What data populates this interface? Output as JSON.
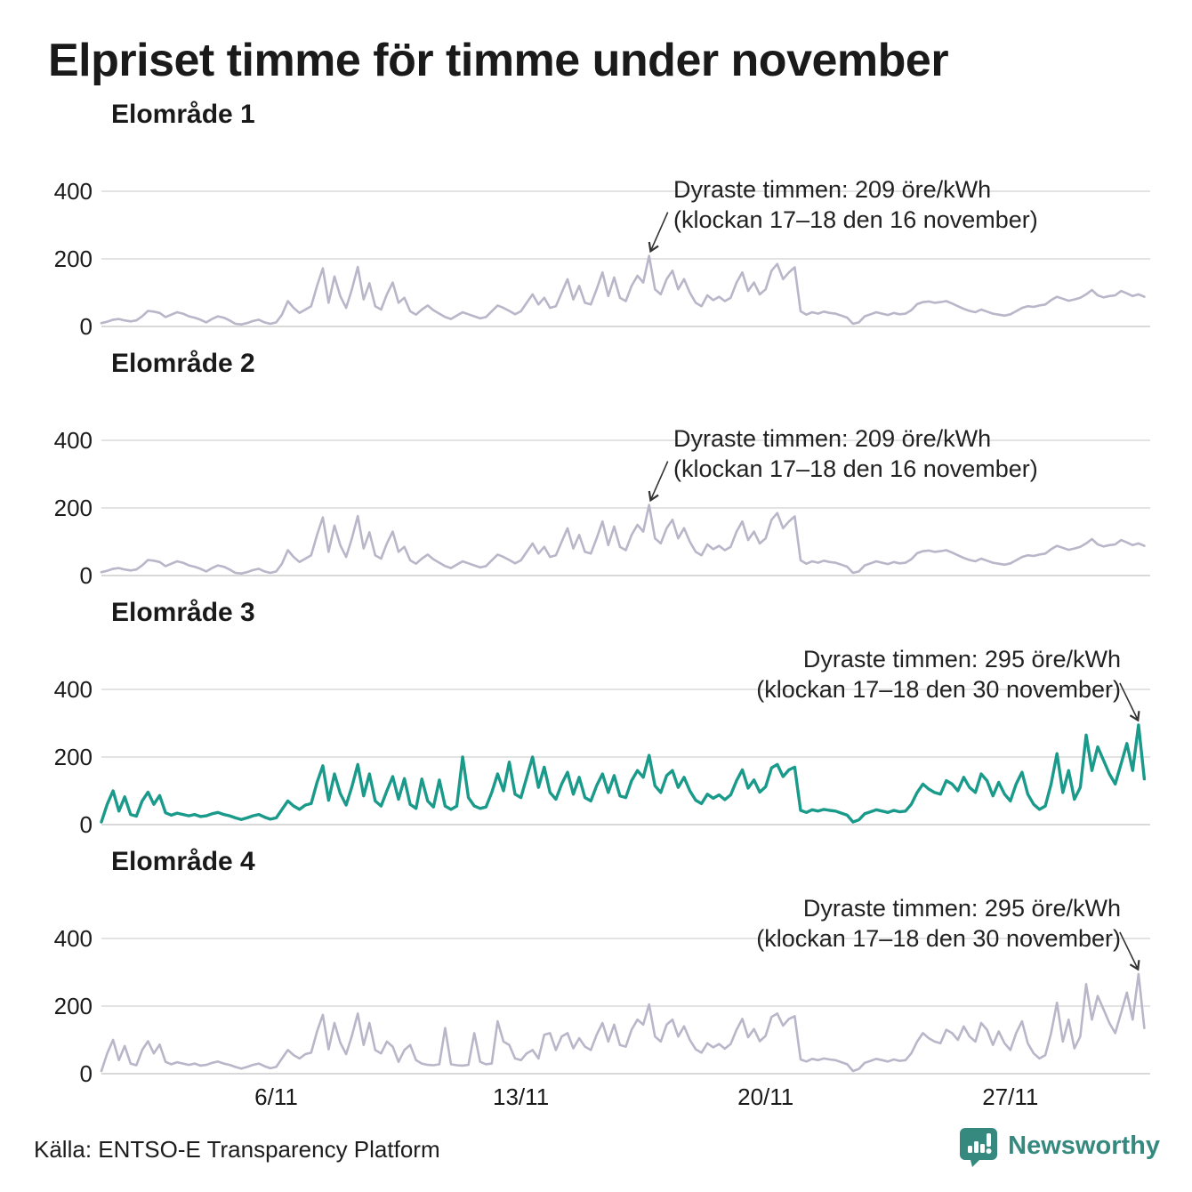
{
  "title": "Elpriset timme för timme under november",
  "source": "Källa: ENTSO-E Transparency Platform",
  "brand": {
    "name": "Newsworthy",
    "color": "#35897f"
  },
  "colors": {
    "text": "#1a1a1a",
    "grid": "#e3e3e3",
    "baseline": "#d9d9d9",
    "gray_line": "#b8b6c8",
    "teal_line": "#199a8a",
    "arrow": "#333333"
  },
  "axis": {
    "y_ticks": [
      "400",
      "200",
      "0"
    ],
    "x_ticks": [
      "6/11",
      "13/11",
      "20/11",
      "27/11"
    ],
    "x_tick_days": [
      6,
      13,
      20,
      27
    ],
    "y_unit": "öre/kWh",
    "days": 30,
    "points_per_day": 6
  },
  "chart_data": {
    "type": "line",
    "unit": "öre/kWh",
    "x_range": [
      "1 november",
      "30 november"
    ],
    "ylim": [
      0,
      400
    ],
    "time_resolution": "hourly prices, sampled every 4 hours",
    "panels": [
      {
        "title": "Elområde 1",
        "color_key": "gray_line",
        "annotation": {
          "line1": "Dyraste timmen: 209 öre/kWh",
          "line2": "(klockan 17–18 den 16 november)",
          "align": "left",
          "peak_value": 209,
          "peak_time": "16 november klockan 17–18"
        },
        "values": [
          10,
          14,
          20,
          22,
          18,
          15,
          18,
          30,
          46,
          44,
          40,
          28,
          35,
          42,
          38,
          30,
          26,
          20,
          12,
          22,
          30,
          26,
          18,
          8,
          6,
          10,
          16,
          20,
          12,
          8,
          12,
          35,
          75,
          55,
          40,
          50,
          60,
          120,
          172,
          70,
          148,
          90,
          55,
          110,
          176,
          80,
          128,
          60,
          50,
          95,
          130,
          70,
          85,
          45,
          35,
          50,
          62,
          48,
          38,
          28,
          22,
          32,
          42,
          36,
          30,
          24,
          28,
          45,
          62,
          55,
          46,
          36,
          45,
          70,
          95,
          65,
          85,
          55,
          60,
          100,
          140,
          80,
          120,
          70,
          65,
          110,
          160,
          90,
          145,
          85,
          75,
          120,
          150,
          130,
          209,
          110,
          95,
          140,
          165,
          110,
          140,
          100,
          70,
          60,
          92,
          78,
          88,
          75,
          85,
          130,
          160,
          105,
          130,
          95,
          110,
          165,
          185,
          140,
          160,
          175,
          45,
          35,
          42,
          38,
          44,
          40,
          38,
          32,
          26,
          8,
          12,
          30,
          36,
          42,
          38,
          34,
          40,
          36,
          38,
          48,
          66,
          72,
          74,
          70,
          72,
          75,
          68,
          60,
          52,
          46,
          42,
          50,
          44,
          38,
          35,
          32,
          36,
          45,
          55,
          60,
          58,
          62,
          65,
          78,
          88,
          82,
          76,
          80,
          85,
          95,
          108,
          92,
          86,
          90,
          92,
          105,
          98,
          90,
          95,
          88
        ]
      },
      {
        "title": "Elområde 2",
        "color_key": "gray_line",
        "annotation": {
          "line1": "Dyraste timmen: 209 öre/kWh",
          "line2": "(klockan 17–18 den 16 november)",
          "align": "left",
          "peak_value": 209,
          "peak_time": "16 november klockan 17–18"
        },
        "values": [
          10,
          14,
          20,
          22,
          18,
          15,
          18,
          30,
          46,
          44,
          40,
          28,
          35,
          42,
          38,
          30,
          26,
          20,
          12,
          22,
          30,
          26,
          18,
          8,
          6,
          10,
          16,
          20,
          12,
          8,
          12,
          35,
          75,
          55,
          40,
          50,
          60,
          120,
          172,
          70,
          148,
          90,
          55,
          110,
          176,
          80,
          128,
          60,
          50,
          95,
          130,
          70,
          85,
          45,
          35,
          50,
          62,
          48,
          38,
          28,
          22,
          32,
          42,
          36,
          30,
          24,
          28,
          45,
          62,
          55,
          46,
          36,
          45,
          70,
          95,
          65,
          85,
          55,
          60,
          100,
          140,
          80,
          120,
          70,
          65,
          110,
          160,
          90,
          145,
          85,
          75,
          120,
          150,
          130,
          209,
          110,
          95,
          140,
          165,
          110,
          140,
          100,
          70,
          60,
          92,
          78,
          88,
          75,
          85,
          130,
          160,
          105,
          130,
          95,
          110,
          165,
          185,
          140,
          160,
          175,
          45,
          35,
          42,
          38,
          44,
          40,
          38,
          32,
          26,
          8,
          12,
          30,
          36,
          42,
          38,
          34,
          40,
          36,
          38,
          48,
          66,
          72,
          74,
          70,
          72,
          75,
          68,
          60,
          52,
          46,
          42,
          50,
          44,
          38,
          35,
          32,
          36,
          45,
          55,
          60,
          58,
          62,
          65,
          78,
          88,
          82,
          76,
          80,
          85,
          95,
          108,
          92,
          86,
          90,
          92,
          105,
          98,
          90,
          95,
          88
        ]
      },
      {
        "title": "Elområde 3",
        "color_key": "teal_line",
        "annotation": {
          "line1": "Dyraste timmen: 295 öre/kWh",
          "line2": "(klockan 17–18 den 30 november)",
          "align": "right",
          "peak_value": 295,
          "peak_time": "30 november klockan 17–18"
        },
        "values": [
          8,
          60,
          100,
          40,
          82,
          30,
          25,
          70,
          96,
          60,
          86,
          35,
          28,
          34,
          30,
          26,
          30,
          24,
          26,
          32,
          36,
          30,
          26,
          20,
          15,
          20,
          26,
          30,
          22,
          16,
          20,
          45,
          70,
          55,
          45,
          58,
          62,
          125,
          174,
          72,
          150,
          92,
          58,
          112,
          178,
          85,
          150,
          70,
          55,
          100,
          142,
          75,
          136,
          60,
          48,
          135,
          70,
          52,
          132,
          55,
          45,
          55,
          200,
          80,
          55,
          48,
          52,
          95,
          150,
          100,
          185,
          90,
          80,
          140,
          200,
          110,
          170,
          95,
          75,
          120,
          155,
          90,
          140,
          80,
          70,
          115,
          150,
          95,
          145,
          85,
          80,
          130,
          160,
          140,
          205,
          115,
          95,
          145,
          160,
          110,
          140,
          100,
          72,
          62,
          90,
          78,
          88,
          74,
          88,
          130,
          162,
          108,
          132,
          96,
          112,
          168,
          178,
          142,
          162,
          170,
          42,
          36,
          44,
          40,
          45,
          42,
          40,
          34,
          28,
          8,
          14,
          32,
          38,
          44,
          40,
          36,
          42,
          38,
          40,
          60,
          95,
          120,
          105,
          95,
          90,
          130,
          120,
          100,
          140,
          110,
          95,
          150,
          130,
          85,
          125,
          90,
          70,
          120,
          155,
          90,
          60,
          45,
          55,
          120,
          210,
          95,
          160,
          75,
          110,
          265,
          160,
          230,
          190,
          150,
          120,
          180,
          240,
          160,
          295,
          135
        ]
      },
      {
        "title": "Elområde 4",
        "color_key": "gray_line",
        "annotation": {
          "line1": "Dyraste timmen: 295 öre/kWh",
          "line2": "(klockan 17–18 den 30 november)",
          "align": "right",
          "peak_value": 295,
          "peak_time": "30 november klockan 17–18"
        },
        "values": [
          8,
          60,
          100,
          40,
          82,
          30,
          25,
          70,
          96,
          60,
          86,
          35,
          28,
          34,
          30,
          26,
          30,
          24,
          26,
          32,
          36,
          30,
          26,
          20,
          15,
          20,
          26,
          30,
          22,
          16,
          20,
          45,
          70,
          55,
          45,
          58,
          62,
          125,
          174,
          72,
          150,
          92,
          58,
          112,
          178,
          85,
          150,
          70,
          60,
          95,
          80,
          35,
          70,
          85,
          40,
          30,
          26,
          25,
          28,
          135,
          28,
          25,
          24,
          26,
          120,
          35,
          28,
          30,
          155,
          95,
          85,
          45,
          40,
          60,
          70,
          45,
          115,
          120,
          70,
          110,
          120,
          75,
          105,
          80,
          70,
          115,
          150,
          95,
          145,
          85,
          80,
          130,
          160,
          145,
          205,
          110,
          95,
          145,
          160,
          110,
          140,
          100,
          72,
          62,
          90,
          78,
          88,
          74,
          88,
          130,
          162,
          108,
          132,
          96,
          112,
          168,
          178,
          142,
          162,
          170,
          42,
          36,
          44,
          40,
          45,
          42,
          40,
          34,
          28,
          8,
          14,
          32,
          38,
          44,
          40,
          36,
          42,
          38,
          40,
          60,
          95,
          120,
          105,
          95,
          90,
          130,
          120,
          100,
          140,
          110,
          95,
          150,
          130,
          85,
          125,
          90,
          70,
          120,
          155,
          90,
          60,
          45,
          55,
          120,
          210,
          95,
          160,
          75,
          110,
          265,
          160,
          230,
          190,
          150,
          120,
          180,
          240,
          160,
          295,
          135
        ]
      }
    ]
  }
}
